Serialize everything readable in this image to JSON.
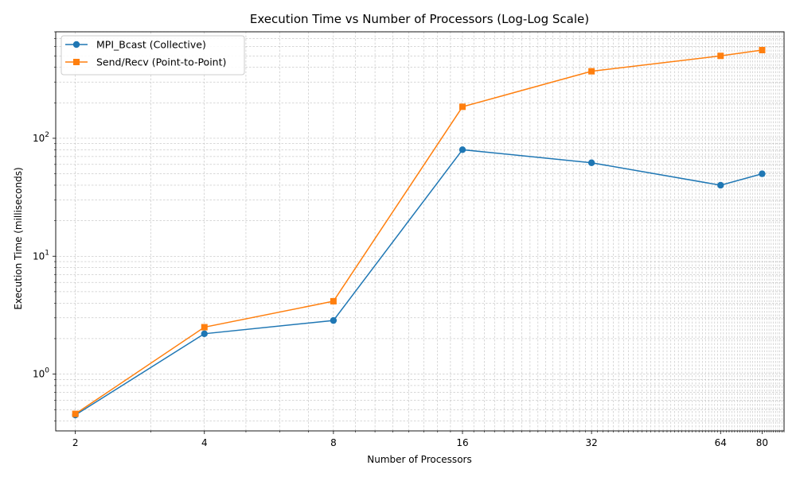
{
  "chart_data": {
    "type": "line",
    "title": "Execution Time vs Number of Processors (Log-Log Scale)",
    "xlabel": "Number of Processors",
    "ylabel": "Execution Time (milliseconds)",
    "x_scale": "log2",
    "y_scale": "log10",
    "x": [
      2,
      4,
      8,
      16,
      32,
      64,
      80
    ],
    "x_tick_labels": [
      "2",
      "4",
      "8",
      "16",
      "32",
      "64",
      "80"
    ],
    "y_tick_labels": [
      {
        "value": 1,
        "label": "10⁰",
        "base": "10",
        "exp": "0"
      },
      {
        "value": 10,
        "label": "10¹",
        "base": "10",
        "exp": "1"
      },
      {
        "value": 100,
        "label": "10²",
        "base": "10",
        "exp": "2"
      }
    ],
    "xlim": [
      1.8,
      90
    ],
    "ylim": [
      0.33,
      800
    ],
    "grid": true,
    "legend_position": "top-left",
    "series": [
      {
        "name": "MPI_Bcast (Collective)",
        "color": "#1f77b4",
        "marker": "circle",
        "values": [
          0.45,
          2.2,
          2.85,
          80,
          62,
          40,
          50
        ]
      },
      {
        "name": "Send/Recv (Point-to-Point)",
        "color": "#ff7f0e",
        "marker": "square",
        "values": [
          0.46,
          2.5,
          4.15,
          185,
          370,
          500,
          560
        ]
      }
    ]
  }
}
